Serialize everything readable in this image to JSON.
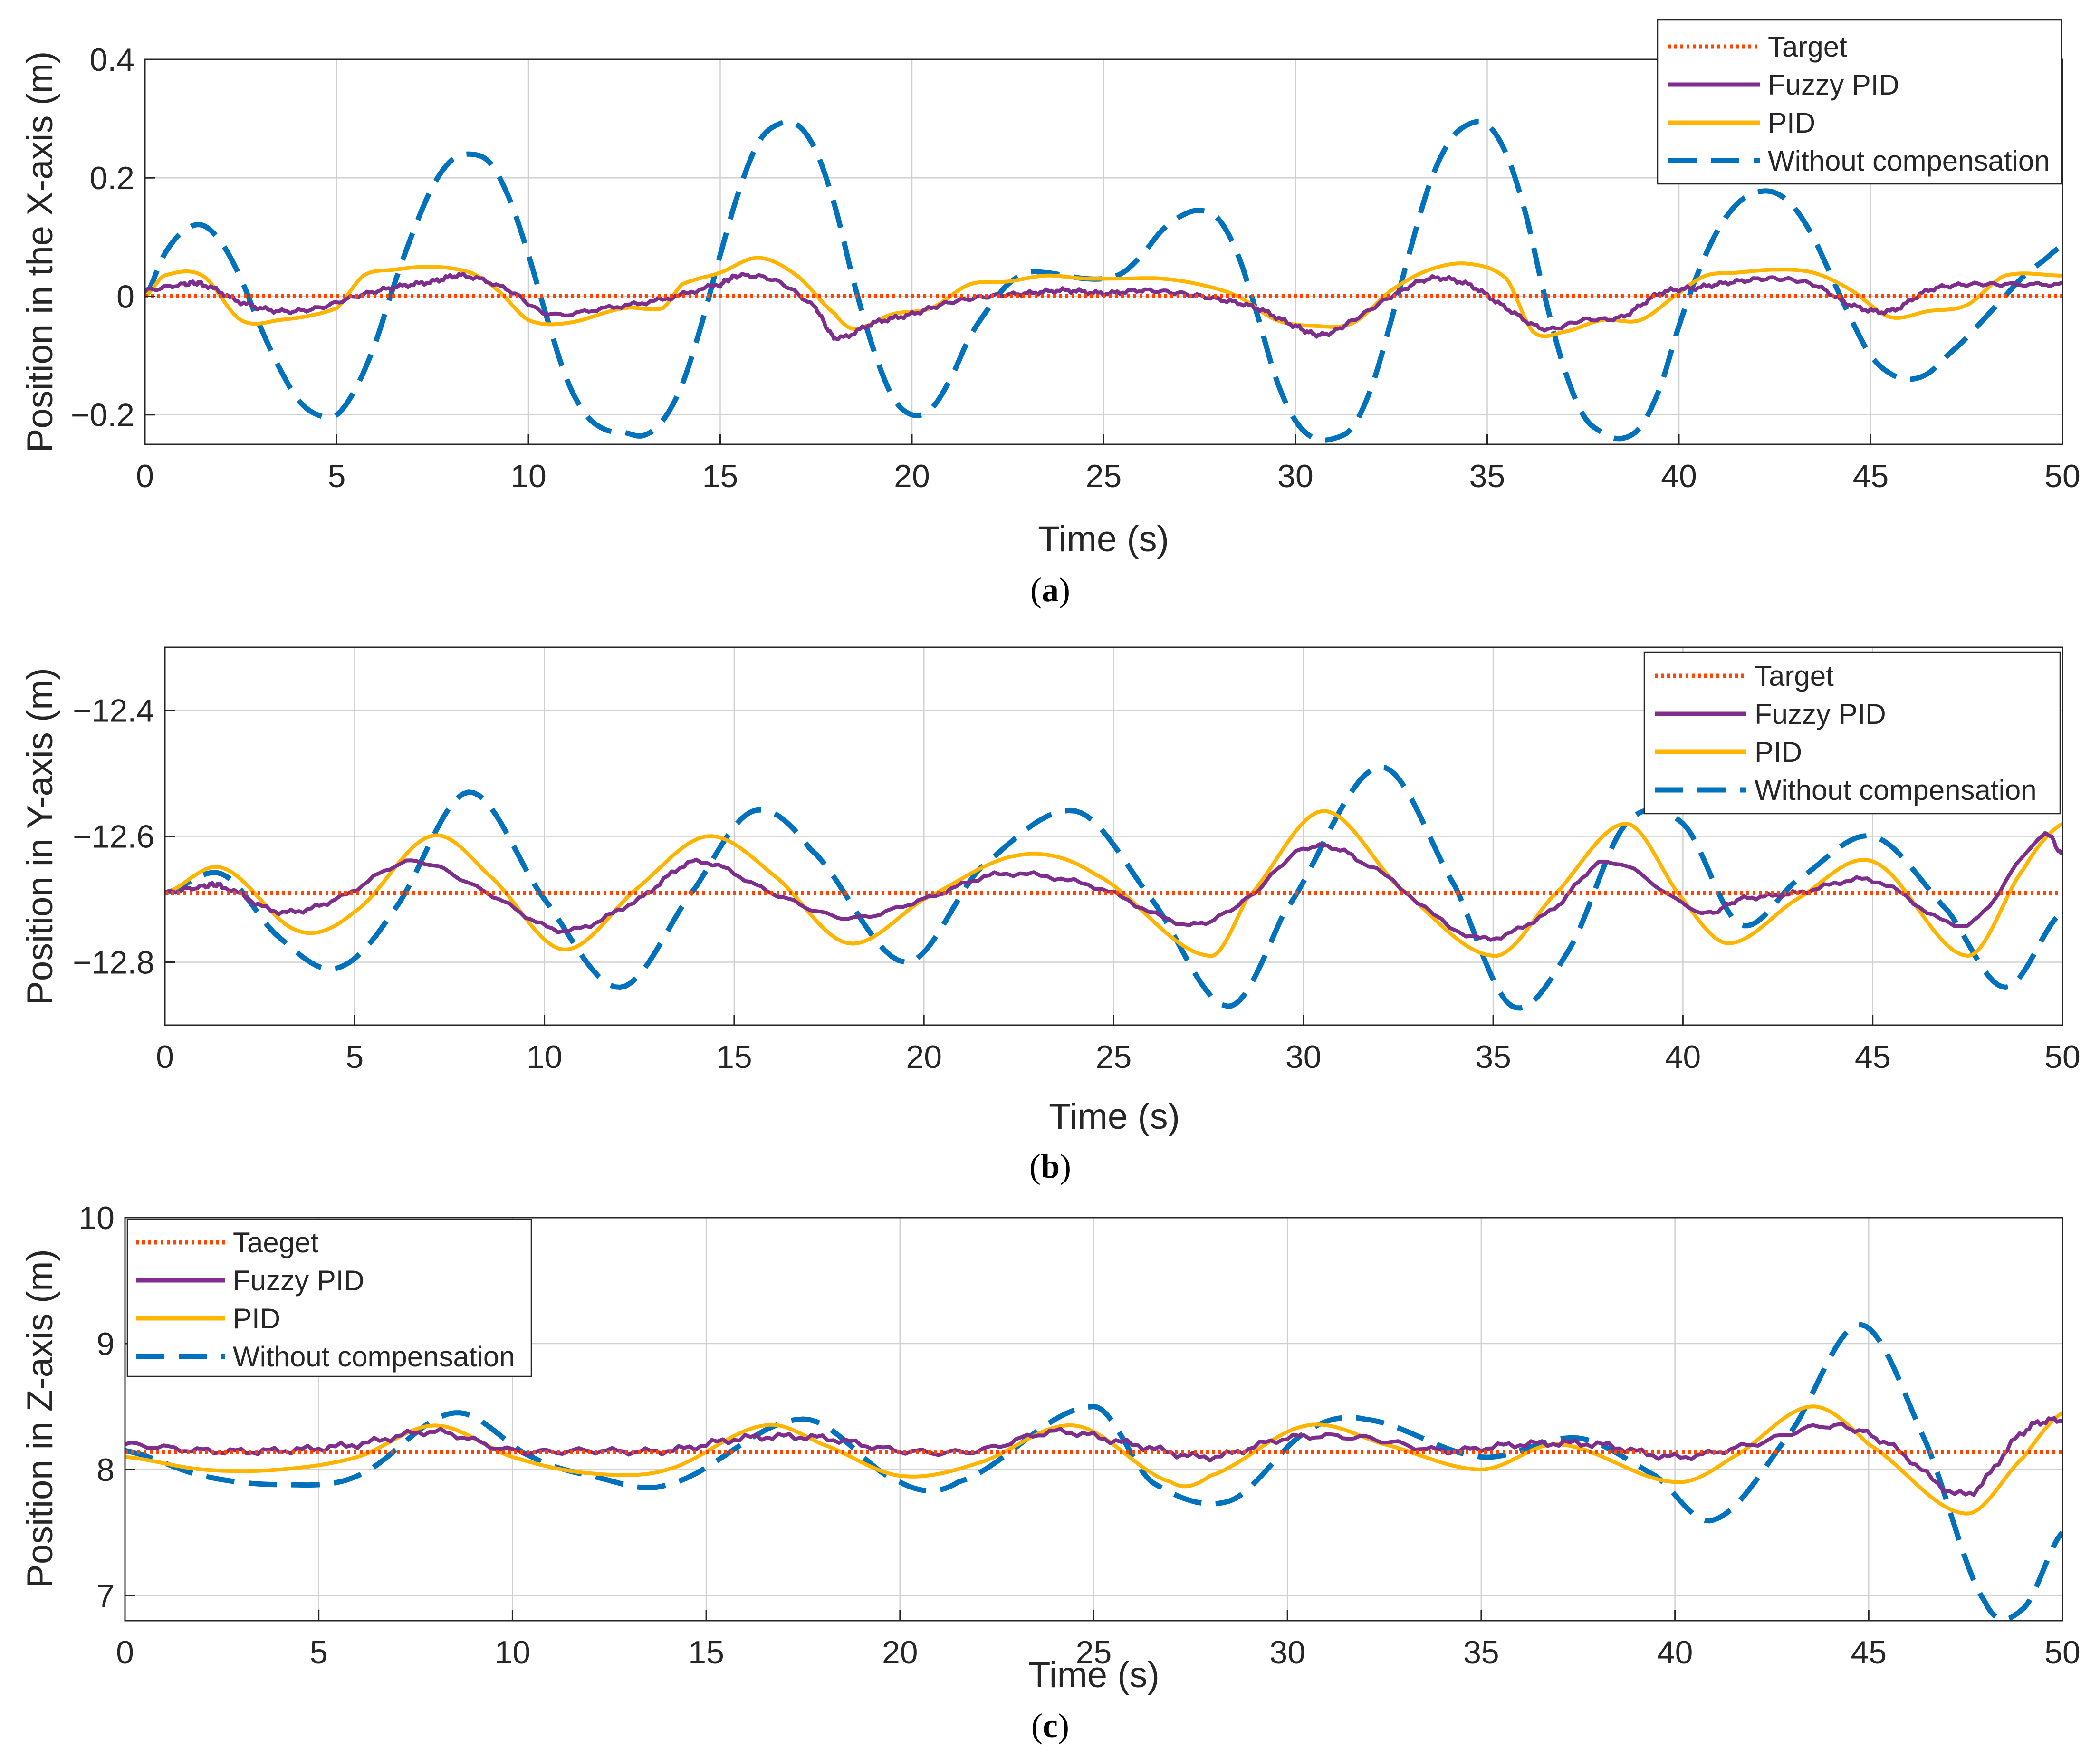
{
  "colors": {
    "target": "#ff4500",
    "fuzzy": "#7e2f8e",
    "pid": "#ffb400",
    "without": "#0072bd",
    "grid": "#d0d0d0",
    "axis": "#262626"
  },
  "chart_data": [
    {
      "type": "line",
      "panel": "a",
      "caption_open": "(",
      "caption_letter": "a",
      "caption_close": ")",
      "xlabel": "Time (s)",
      "ylabel": "Position in the X-axis (m)",
      "xlim": [
        0,
        50
      ],
      "ylim": [
        -0.25,
        0.4
      ],
      "xticks": [
        0,
        5,
        10,
        15,
        20,
        25,
        30,
        35,
        40,
        45,
        50
      ],
      "xtick_labels": [
        "0",
        "5",
        "10",
        "15",
        "20",
        "25",
        "30",
        "35",
        "40",
        "45",
        "50"
      ],
      "yticks": [
        -0.2,
        0,
        0.2,
        0.4
      ],
      "ytick_labels": [
        "−0.2",
        "0",
        "0.2",
        "0.4"
      ],
      "grid": true,
      "legend_position": "top-right",
      "series": [
        {
          "name": "Target",
          "style": "dotted",
          "color": "#ff4500",
          "x": [
            0,
            50
          ],
          "y": [
            0,
            0
          ]
        },
        {
          "name": "Fuzzy PID",
          "style": "solid",
          "color": "#7e2f8e",
          "noise": 0.004,
          "x": [
            0,
            1,
            1.5,
            2.5,
            3.5,
            4.5,
            5.5,
            6.5,
            7.5,
            8.3,
            9.5,
            10.5,
            12,
            13.5,
            15,
            15.5,
            16.5,
            17.5,
            18,
            19,
            20,
            21,
            22,
            23,
            24,
            25,
            26,
            27,
            28,
            29,
            30,
            30.7,
            31.5,
            32.5,
            33.5,
            34.5,
            35.5,
            36.5,
            37.5,
            38.5,
            39.5,
            40.5,
            41.5,
            42.5,
            43.5,
            44.5,
            45.5,
            46.5,
            47.5,
            48.5,
            50
          ],
          "y": [
            0.01,
            0.02,
            0.02,
            -0.01,
            -0.025,
            -0.02,
            0.0,
            0.015,
            0.025,
            0.035,
            0.01,
            -0.03,
            -0.02,
            -0.005,
            0.02,
            0.035,
            0.025,
            -0.02,
            -0.07,
            -0.045,
            -0.03,
            -0.01,
            0.0,
            0.005,
            0.01,
            0.005,
            0.01,
            0.005,
            -0.005,
            -0.02,
            -0.05,
            -0.065,
            -0.04,
            0.0,
            0.03,
            0.02,
            -0.02,
            -0.055,
            -0.04,
            -0.035,
            0.005,
            0.015,
            0.025,
            0.03,
            0.02,
            -0.015,
            -0.025,
            0.01,
            0.02,
            0.02,
            0.02
          ]
        },
        {
          "name": "PID",
          "style": "solid",
          "color": "#ffb400",
          "x": [
            0,
            0.5,
            1.5,
            2.5,
            3.5,
            5,
            5.7,
            6.5,
            7.5,
            8.5,
            9.2,
            10,
            11,
            12.5,
            13.5,
            14,
            15,
            16,
            17,
            18,
            18.5,
            19.5,
            20.5,
            21.5,
            22.5,
            23.5,
            24.5,
            25.5,
            26.5,
            27.5,
            28.5,
            29.5,
            30.5,
            31.5,
            32.5,
            33.5,
            34.5,
            35.5,
            36.2,
            37,
            38,
            39,
            40,
            40.7,
            41.5,
            42.5,
            43.5,
            44.5,
            45.5,
            46.5,
            47.5,
            48.5,
            50
          ],
          "y": [
            0.0,
            0.035,
            0.035,
            -0.04,
            -0.04,
            -0.02,
            0.035,
            0.045,
            0.05,
            0.04,
            0.01,
            -0.04,
            -0.045,
            -0.02,
            -0.02,
            0.02,
            0.04,
            0.065,
            0.035,
            -0.03,
            -0.055,
            -0.03,
            -0.02,
            0.02,
            0.025,
            0.035,
            0.03,
            0.03,
            0.03,
            0.02,
            0.0,
            -0.04,
            -0.05,
            -0.045,
            0.01,
            0.045,
            0.055,
            0.03,
            -0.06,
            -0.06,
            -0.04,
            -0.04,
            0.005,
            0.035,
            0.04,
            0.045,
            0.04,
            0.01,
            -0.035,
            -0.025,
            -0.015,
            0.035,
            0.035
          ]
        },
        {
          "name": "Without compensation",
          "style": "dashed",
          "color": "#0072bd",
          "x": [
            0,
            0.5,
            1,
            1.5,
            2,
            2.5,
            3,
            3.5,
            4,
            4.5,
            5,
            5.5,
            6,
            6.5,
            7,
            7.5,
            8,
            8.5,
            9,
            9.5,
            10,
            10.5,
            11,
            11.5,
            12,
            12.5,
            13,
            13.5,
            14,
            14.5,
            15,
            15.5,
            16,
            16.5,
            17,
            17.5,
            18,
            18.5,
            19,
            19.5,
            20,
            20.5,
            21,
            21.5,
            22,
            22.5,
            23,
            23.5,
            24,
            24.5,
            25,
            25.5,
            26,
            26.5,
            27,
            27.5,
            28,
            28.5,
            29,
            29.5,
            30,
            30.5,
            31,
            31.5,
            32,
            32.5,
            33,
            33.5,
            34,
            34.5,
            35,
            35.5,
            36,
            36.5,
            37,
            37.5,
            38,
            38.5,
            39,
            39.5,
            40,
            40.5,
            41,
            41.5,
            42,
            42.5,
            43,
            43.5,
            44,
            44.5,
            45,
            45.5,
            46,
            46.5,
            47,
            47.5,
            48,
            48.5,
            49,
            49.5,
            50
          ],
          "y": [
            0.0,
            0.07,
            0.11,
            0.12,
            0.09,
            0.03,
            -0.05,
            -0.12,
            -0.175,
            -0.2,
            -0.2,
            -0.155,
            -0.08,
            0.02,
            0.11,
            0.185,
            0.23,
            0.24,
            0.225,
            0.165,
            0.07,
            -0.04,
            -0.14,
            -0.2,
            -0.225,
            -0.23,
            -0.235,
            -0.21,
            -0.15,
            -0.05,
            0.07,
            0.18,
            0.26,
            0.29,
            0.29,
            0.245,
            0.15,
            0.02,
            -0.09,
            -0.17,
            -0.2,
            -0.19,
            -0.14,
            -0.07,
            -0.02,
            0.02,
            0.04,
            0.04,
            0.035,
            0.03,
            0.03,
            0.04,
            0.07,
            0.11,
            0.135,
            0.145,
            0.13,
            0.07,
            -0.03,
            -0.14,
            -0.21,
            -0.24,
            -0.24,
            -0.22,
            -0.15,
            -0.04,
            0.08,
            0.19,
            0.26,
            0.29,
            0.29,
            0.24,
            0.14,
            0.0,
            -0.12,
            -0.2,
            -0.23,
            -0.24,
            -0.22,
            -0.155,
            -0.05,
            0.04,
            0.11,
            0.155,
            0.175,
            0.175,
            0.15,
            0.1,
            0.03,
            -0.04,
            -0.1,
            -0.13,
            -0.14,
            -0.13,
            -0.1,
            -0.07,
            -0.035,
            0.0,
            0.035,
            0.06,
            0.085
          ]
        }
      ]
    },
    {
      "type": "line",
      "panel": "b",
      "caption_open": "(",
      "caption_letter": "b",
      "caption_close": ")",
      "xlabel": "Time (s)",
      "ylabel": "Position in Y-axis (m)",
      "xlim": [
        0,
        50
      ],
      "ylim": [
        -12.9,
        -12.3
      ],
      "xticks": [
        0,
        5,
        10,
        15,
        20,
        25,
        30,
        35,
        40,
        45,
        50
      ],
      "xtick_labels": [
        "0",
        "5",
        "10",
        "15",
        "20",
        "25",
        "30",
        "35",
        "40",
        "45",
        "50"
      ],
      "yticks": [
        -12.8,
        -12.6,
        -12.4
      ],
      "ytick_labels": [
        "−12.8",
        "−12.6",
        "−12.4"
      ],
      "grid": true,
      "legend_position": "top-right",
      "series": [
        {
          "name": "Target",
          "style": "dotted",
          "color": "#ff4500",
          "x": [
            0,
            50
          ],
          "y": [
            -12.69,
            -12.69
          ]
        },
        {
          "name": "Fuzzy PID",
          "style": "solid",
          "color": "#7e2f8e",
          "noise": 0.004,
          "x": [
            0,
            1,
            1.5,
            3,
            4.5,
            6.5,
            8.5,
            10.5,
            12.5,
            14,
            16,
            18,
            20,
            22,
            24.5,
            27,
            28.5,
            30,
            31.5,
            34.5,
            36.5,
            38,
            40.5,
            41.5,
            43,
            45,
            47.5,
            49.5,
            50
          ],
          "y": [
            -12.69,
            -12.68,
            -12.68,
            -12.72,
            -12.7,
            -12.64,
            -12.69,
            -12.75,
            -12.7,
            -12.64,
            -12.69,
            -12.73,
            -12.7,
            -12.66,
            -12.68,
            -12.74,
            -12.7,
            -12.62,
            -12.64,
            -12.76,
            -12.72,
            -12.64,
            -12.72,
            -12.7,
            -12.69,
            -12.67,
            -12.74,
            -12.6,
            -12.63
          ]
        },
        {
          "name": "PID",
          "style": "solid",
          "color": "#ffb400",
          "x": [
            0,
            1.5,
            3.5,
            5,
            7,
            8.5,
            10.5,
            12.5,
            14.3,
            16,
            18,
            20,
            22.5,
            24.5,
            27.5,
            28.5,
            30.5,
            32.5,
            35,
            36.5,
            38.5,
            40,
            41.2,
            43,
            45,
            47.5,
            49,
            50
          ],
          "y": [
            -12.69,
            -12.65,
            -12.75,
            -12.72,
            -12.6,
            -12.66,
            -12.78,
            -12.68,
            -12.6,
            -12.66,
            -12.77,
            -12.7,
            -12.63,
            -12.66,
            -12.79,
            -12.7,
            -12.56,
            -12.68,
            -12.79,
            -12.7,
            -12.58,
            -12.7,
            -12.77,
            -12.7,
            -12.64,
            -12.79,
            -12.65,
            -12.58
          ]
        },
        {
          "name": "Without compensation",
          "style": "dashed",
          "color": "#0072bd",
          "x": [
            0,
            1.5,
            3,
            4.5,
            6,
            8,
            10,
            12,
            14,
            15.5,
            17,
            19.5,
            21.5,
            24,
            26,
            28,
            29.5,
            32,
            34,
            35.5,
            37,
            38.5,
            40,
            41.5,
            43,
            45,
            47,
            48.5,
            50
          ],
          "y": [
            -12.69,
            -12.66,
            -12.76,
            -12.81,
            -12.72,
            -12.53,
            -12.7,
            -12.84,
            -12.68,
            -12.56,
            -12.62,
            -12.8,
            -12.65,
            -12.56,
            -12.7,
            -12.87,
            -12.72,
            -12.49,
            -12.68,
            -12.87,
            -12.78,
            -12.58,
            -12.58,
            -12.74,
            -12.67,
            -12.6,
            -12.72,
            -12.84,
            -12.72
          ]
        }
      ]
    },
    {
      "type": "line",
      "panel": "c",
      "caption_open": "(",
      "caption_letter": "c",
      "caption_close": ")",
      "xlabel": "Time (s)",
      "ylabel": "Position in Z-axis (m)",
      "xlim": [
        0,
        50
      ],
      "ylim": [
        6.8,
        10
      ],
      "xticks": [
        0,
        5,
        10,
        15,
        20,
        25,
        30,
        35,
        40,
        45,
        50
      ],
      "xtick_labels": [
        "0",
        "5",
        "10",
        "15",
        "20",
        "25",
        "30",
        "35",
        "40",
        "45",
        "50"
      ],
      "yticks": [
        7,
        8,
        9,
        10
      ],
      "ytick_labels": [
        "7",
        "8",
        "9",
        "10"
      ],
      "grid": true,
      "legend_position": "top-left",
      "series": [
        {
          "name": "Taeget",
          "style": "dotted",
          "color": "#ff4500",
          "x": [
            0,
            50
          ],
          "y": [
            8.14,
            8.14
          ]
        },
        {
          "name": "Fuzzy PID",
          "style": "solid",
          "color": "#7e2f8e",
          "noise": 0.03,
          "x": [
            0,
            2,
            4,
            6,
            8,
            10,
            12,
            14,
            16,
            18,
            20,
            22,
            24,
            26,
            28,
            30,
            32,
            34,
            36,
            38,
            40,
            42,
            44,
            45.5,
            47.5,
            49,
            50
          ],
          "y": [
            8.2,
            8.15,
            8.15,
            8.2,
            8.3,
            8.15,
            8.15,
            8.15,
            8.25,
            8.25,
            8.15,
            8.15,
            8.3,
            8.2,
            8.1,
            8.25,
            8.25,
            8.15,
            8.2,
            8.2,
            8.1,
            8.2,
            8.35,
            8.2,
            7.8,
            8.3,
            8.4
          ]
        },
        {
          "name": "PID",
          "style": "solid",
          "color": "#ffb400",
          "x": [
            0,
            2,
            4,
            6,
            8,
            10,
            12,
            14,
            16.5,
            18,
            20,
            22,
            24.5,
            27,
            28,
            30.5,
            32.5,
            35,
            37,
            40,
            41.5,
            43.5,
            45,
            47.5,
            49,
            50
          ],
          "y": [
            8.1,
            8.0,
            8.0,
            8.1,
            8.35,
            8.1,
            7.97,
            8.0,
            8.35,
            8.2,
            7.95,
            8.05,
            8.35,
            7.9,
            7.95,
            8.35,
            8.2,
            8.0,
            8.2,
            7.9,
            8.1,
            8.5,
            8.2,
            7.65,
            8.1,
            8.45
          ]
        },
        {
          "name": "Without compensation",
          "style": "dashed",
          "color": "#0072bd",
          "x": [
            0,
            2,
            4,
            6,
            8.5,
            10.5,
            12,
            14,
            17.5,
            20,
            21.5,
            25,
            26.5,
            28.5,
            30.5,
            32,
            35,
            37.5,
            39.5,
            41,
            43,
            44.8,
            46.5,
            48,
            49,
            50
          ],
          "y": [
            8.15,
            7.95,
            7.88,
            7.95,
            8.45,
            8.1,
            7.95,
            7.88,
            8.4,
            7.9,
            7.9,
            8.5,
            7.9,
            7.75,
            8.3,
            8.4,
            8.1,
            8.25,
            7.95,
            7.6,
            8.3,
            9.15,
            8.2,
            6.95,
            6.9,
            7.5
          ]
        }
      ]
    }
  ]
}
